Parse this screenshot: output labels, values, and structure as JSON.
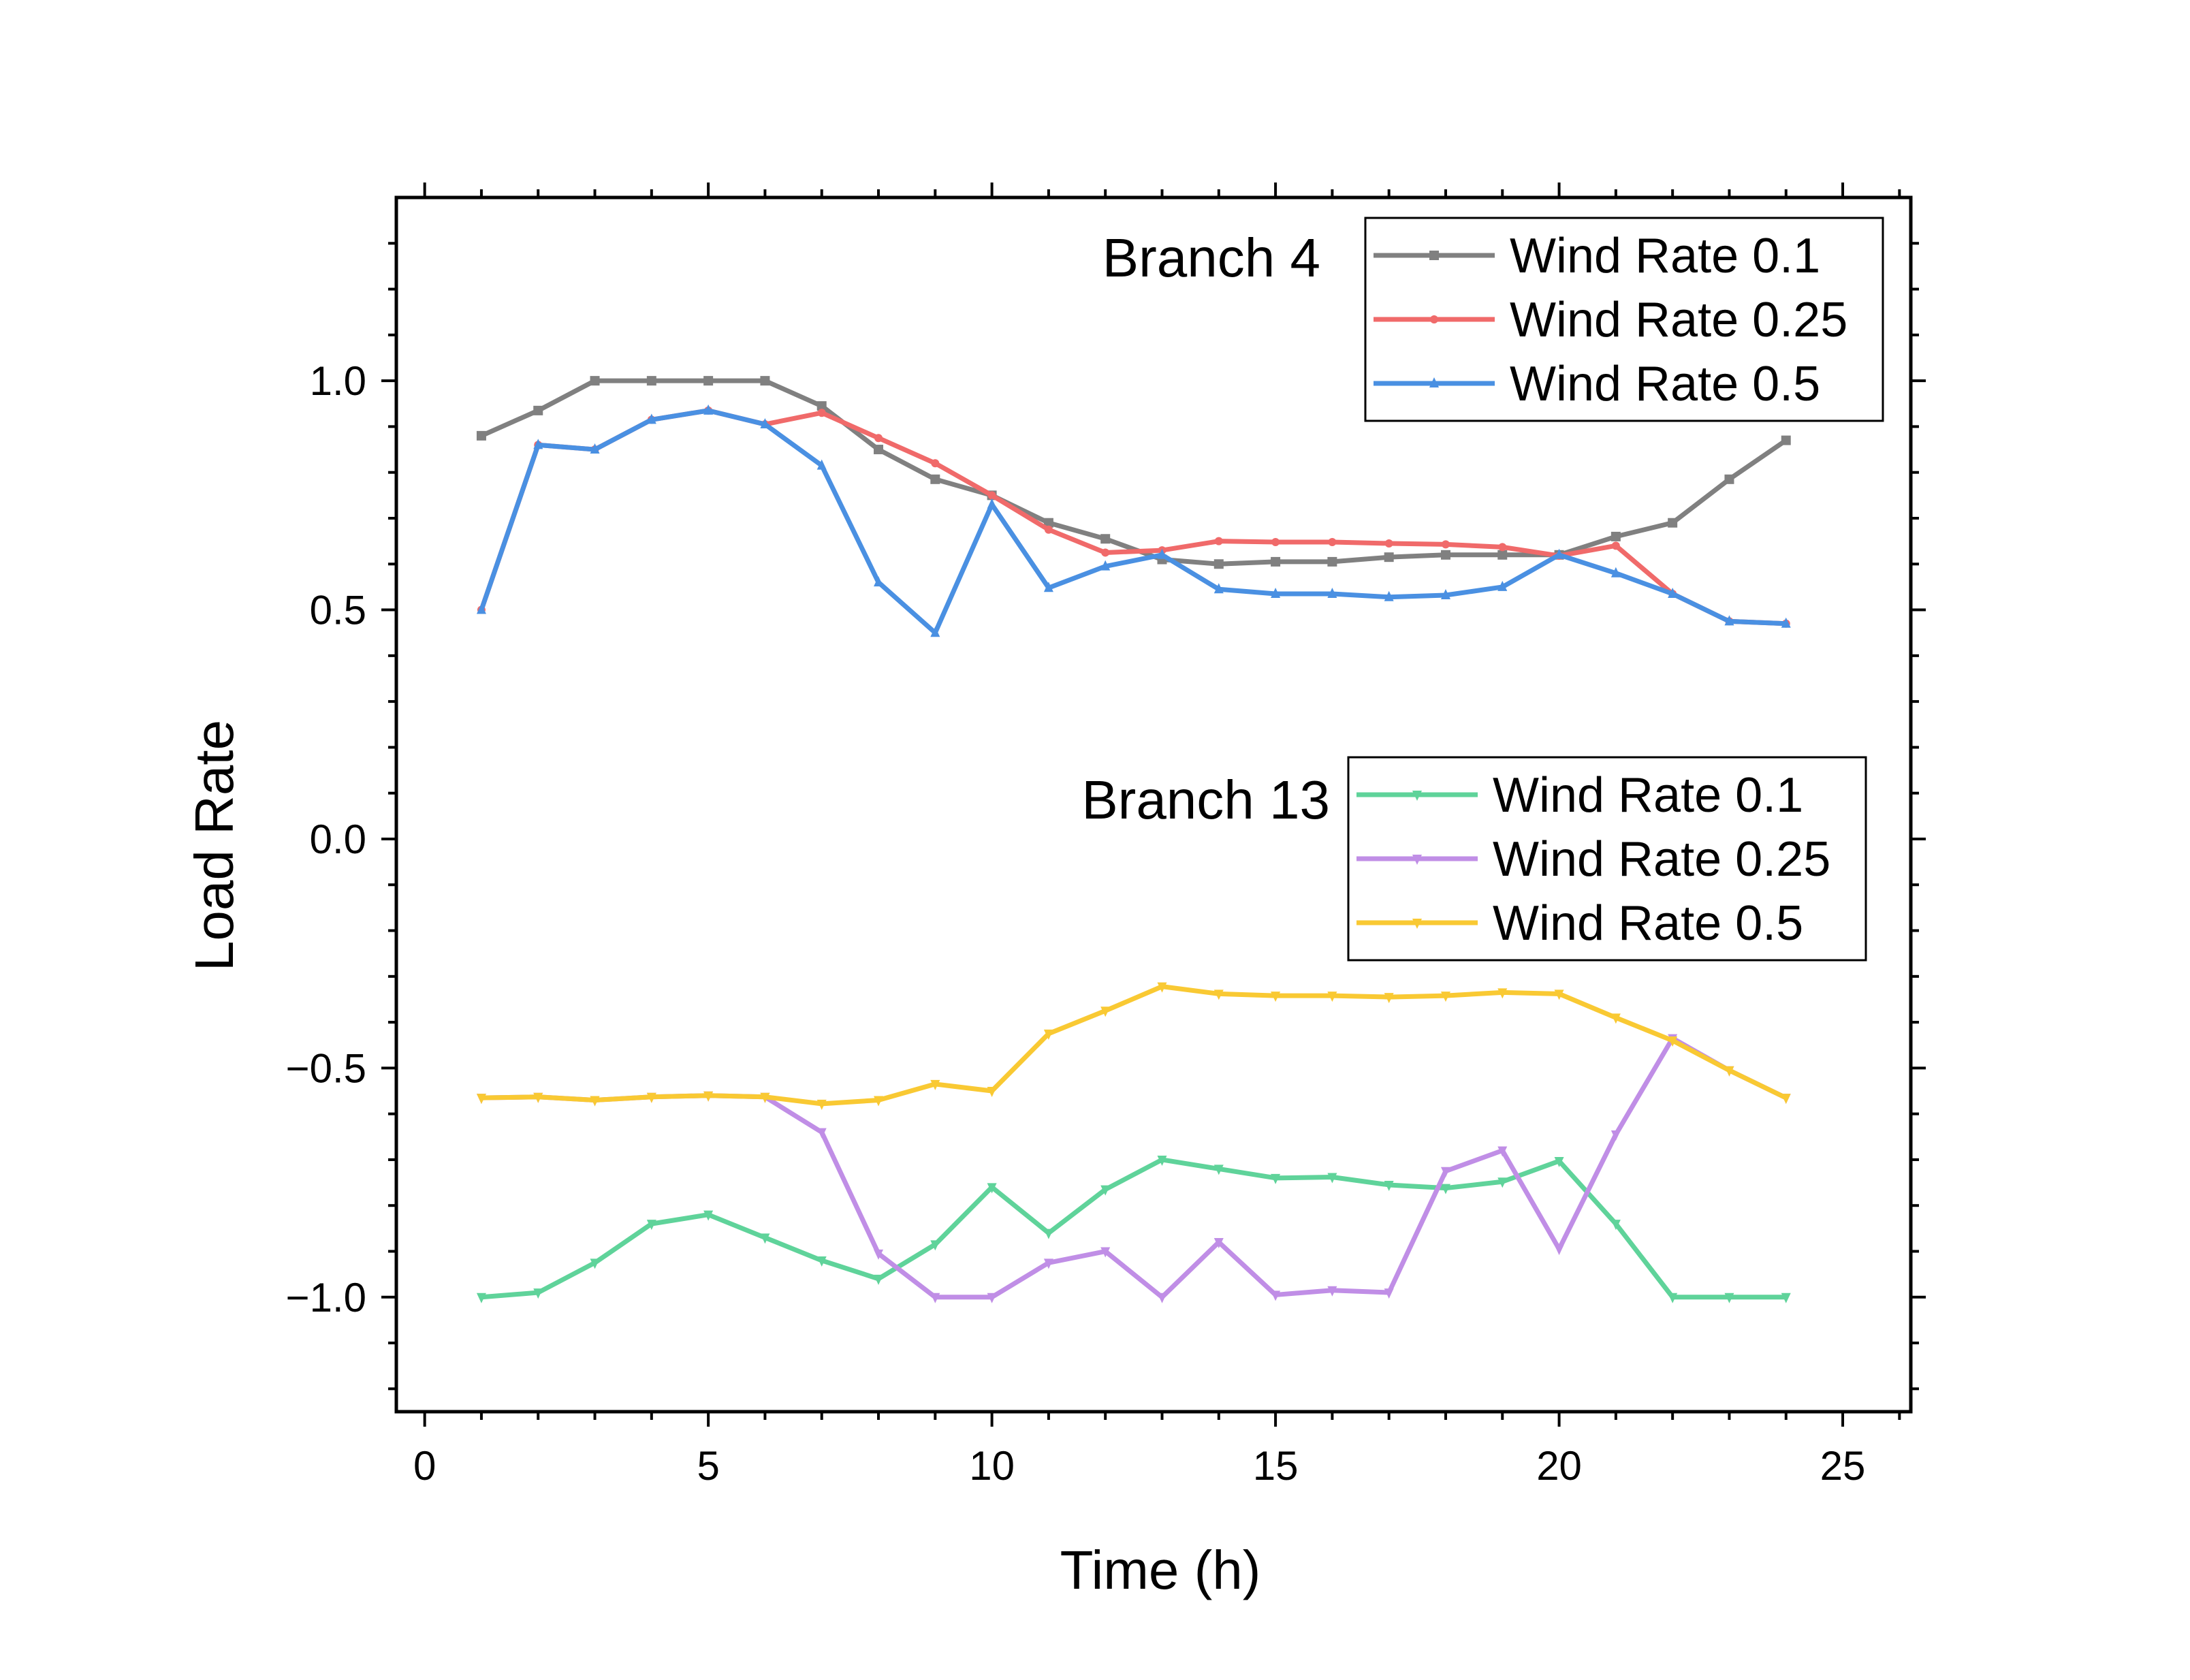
{
  "chart_data": {
    "type": "line",
    "xlabel": "Time (h)",
    "ylabel": "Load Rate",
    "xlim": [
      -0.5,
      26.2
    ],
    "ylim": [
      -1.25,
      1.4
    ],
    "xticks": [
      0,
      5,
      10,
      15,
      20,
      25
    ],
    "xtick_labels": [
      "0",
      "5",
      "10",
      "15",
      "20",
      "25"
    ],
    "yticks": [
      -1.0,
      -0.5,
      0.0,
      0.5,
      1.0
    ],
    "ytick_labels": [
      "−1.0",
      "−0.5",
      "0.0",
      "0.5",
      "1.0"
    ],
    "grid": false,
    "x": [
      1,
      2,
      3,
      4,
      5,
      6,
      7,
      8,
      9,
      10,
      11,
      12,
      13,
      14,
      15,
      16,
      17,
      18,
      19,
      20,
      21,
      22,
      23,
      24
    ],
    "groups": [
      {
        "label": "Branch 4",
        "legend_position": "top-right",
        "series": [
          {
            "name": "Wind Rate 0.1",
            "color": "#808080",
            "marker": "square",
            "values": [
              0.88,
              0.935,
              1.0,
              1.0,
              1.0,
              1.0,
              0.945,
              0.85,
              0.785,
              0.75,
              0.69,
              0.655,
              0.61,
              0.6,
              0.605,
              0.605,
              0.615,
              0.62,
              0.62,
              0.62,
              0.66,
              0.69,
              0.785,
              0.87
            ]
          },
          {
            "name": "Wind Rate 0.25",
            "color": "#f06a6a",
            "marker": "dot",
            "values": [
              0.5,
              0.86,
              0.85,
              0.915,
              0.935,
              0.905,
              0.93,
              0.875,
              0.82,
              0.75,
              0.675,
              0.625,
              0.63,
              0.65,
              0.648,
              0.648,
              0.645,
              0.643,
              0.637,
              0.618,
              0.64,
              0.535,
              0.475,
              0.47
            ]
          },
          {
            "name": "Wind Rate 0.5",
            "color": "#4a90e2",
            "marker": "triangle",
            "values": [
              0.5,
              0.86,
              0.85,
              0.915,
              0.935,
              0.905,
              0.815,
              0.56,
              0.45,
              0.73,
              0.548,
              0.595,
              0.62,
              0.545,
              0.535,
              0.535,
              0.528,
              0.532,
              0.55,
              0.62,
              0.58,
              0.535,
              0.475,
              0.47
            ]
          }
        ]
      },
      {
        "label": "Branch 13",
        "legend_position": "center-right",
        "series": [
          {
            "name": "Wind Rate 0.1",
            "color": "#5fd39a",
            "marker": "tri-down",
            "values": [
              -1.0,
              -0.99,
              -0.925,
              -0.84,
              -0.82,
              -0.87,
              -0.92,
              -0.96,
              -0.885,
              -0.76,
              -0.86,
              -0.765,
              -0.7,
              -0.72,
              -0.74,
              -0.738,
              -0.755,
              -0.762,
              -0.748,
              -0.703,
              -0.84,
              -1.0,
              -1.0,
              -1.0
            ]
          },
          {
            "name": "Wind Rate 0.25",
            "color": "#c08ee6",
            "marker": "tri-down",
            "values": [
              -0.565,
              -0.563,
              -0.57,
              -0.563,
              -0.56,
              -0.563,
              -0.64,
              -0.905,
              -1.0,
              -1.0,
              -0.925,
              -0.9,
              -1.0,
              -0.88,
              -0.995,
              -0.985,
              -0.99,
              -0.725,
              -0.68,
              -0.895,
              -0.645,
              -0.435,
              -0.505,
              -0.565
            ]
          },
          {
            "name": "Wind Rate 0.5",
            "color": "#f9c933",
            "marker": "tri-down",
            "values": [
              -0.565,
              -0.563,
              -0.57,
              -0.563,
              -0.56,
              -0.563,
              -0.578,
              -0.57,
              -0.535,
              -0.55,
              -0.425,
              -0.375,
              -0.322,
              -0.338,
              -0.342,
              -0.342,
              -0.345,
              -0.342,
              -0.335,
              -0.338,
              -0.39,
              -0.44,
              -0.505,
              -0.565
            ]
          }
        ]
      }
    ]
  }
}
